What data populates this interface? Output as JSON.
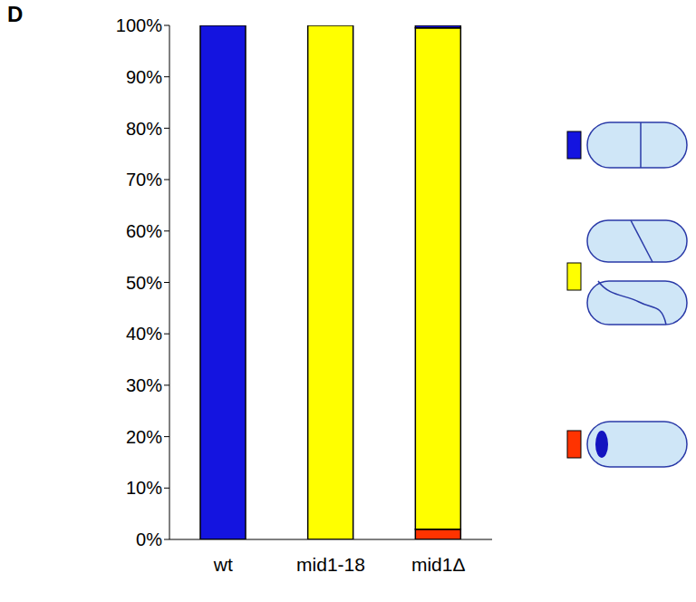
{
  "chart_data": {
    "type": "bar",
    "title": "D",
    "categories": [
      "wt",
      "mid1-18",
      "mid1Δ"
    ],
    "stacked": true,
    "series": [
      {
        "color": "#ff3300",
        "values": [
          0,
          0,
          2
        ]
      },
      {
        "color": "#ffff00",
        "values": [
          0,
          100,
          97.5
        ]
      },
      {
        "color": "#1414e0",
        "values": [
          100,
          0,
          0.5
        ]
      }
    ],
    "ylim": [
      0,
      100
    ],
    "yticks": [
      {
        "value": 0,
        "label": "0%"
      },
      {
        "value": 10,
        "label": "10%"
      },
      {
        "value": 20,
        "label": "20%"
      },
      {
        "value": 30,
        "label": "30%"
      },
      {
        "value": 40,
        "label": "40%"
      },
      {
        "value": 50,
        "label": "50%"
      },
      {
        "value": 60,
        "label": "60%"
      },
      {
        "value": 70,
        "label": "70%"
      },
      {
        "value": 80,
        "label": "80%"
      },
      {
        "value": 90,
        "label": "90%"
      },
      {
        "value": 100,
        "label": "100%"
      }
    ],
    "grid": false
  }
}
